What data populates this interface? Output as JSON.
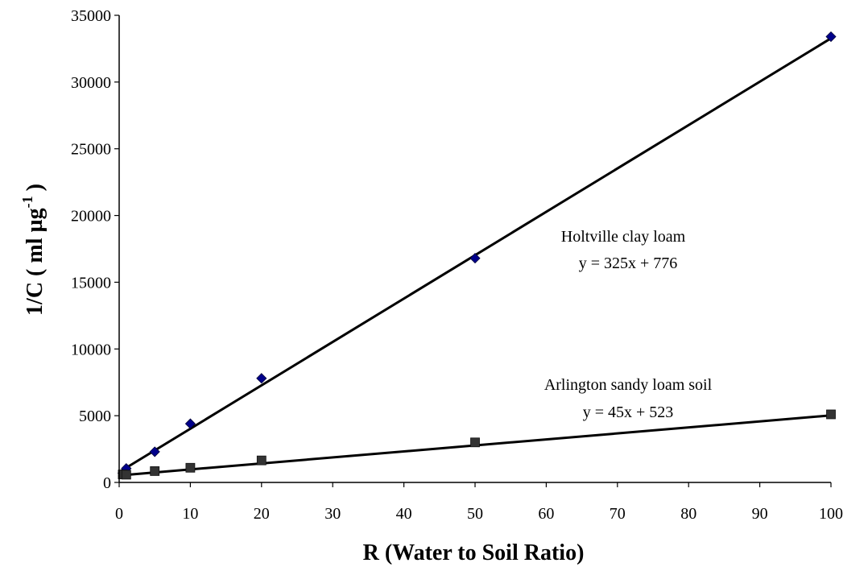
{
  "chart_data": {
    "type": "scatter",
    "title": "",
    "xlabel": "R (Water to Soil Ratio)",
    "ylabel_main": "1/C ( ml µg",
    "ylabel_sup": "-1",
    "ylabel_close": ")",
    "xlim": [
      0,
      100
    ],
    "ylim": [
      0,
      35000
    ],
    "xticks": [
      0,
      10,
      20,
      30,
      40,
      50,
      60,
      70,
      80,
      90,
      100
    ],
    "yticks": [
      0,
      5000,
      10000,
      15000,
      20000,
      25000,
      30000,
      35000
    ],
    "grid": false,
    "legend": "none",
    "series": [
      {
        "name": "Holtville clay loam",
        "marker": "diamond",
        "color": "#00008B",
        "points": [
          [
            0.5,
            700
          ],
          [
            1,
            1050
          ],
          [
            5,
            2300
          ],
          [
            10,
            4400
          ],
          [
            20,
            7800
          ],
          [
            50,
            16800
          ],
          [
            100,
            33400
          ]
        ],
        "trendline": {
          "slope": 325,
          "intercept": 776,
          "equation": "y = 325x + 776"
        }
      },
      {
        "name": "Arlington sandy loam soil",
        "marker": "square",
        "color": "#333333",
        "points": [
          [
            0.5,
            600
          ],
          [
            1,
            580
          ],
          [
            5,
            850
          ],
          [
            10,
            1100
          ],
          [
            20,
            1650
          ],
          [
            50,
            3000
          ],
          [
            100,
            5100
          ]
        ],
        "trendline": {
          "slope": 45,
          "intercept": 523,
          "equation": "y = 45x + 523"
        }
      }
    ]
  }
}
